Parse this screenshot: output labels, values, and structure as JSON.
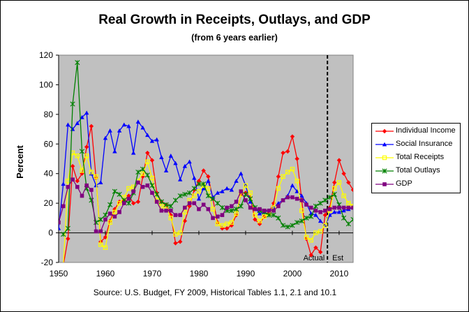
{
  "chart_data": {
    "type": "line",
    "title": "Real Growth in Receipts, Outlays, and GDP",
    "subtitle": "(from 6 years earlier)",
    "xlabel": "",
    "ylabel": "Percent",
    "source": "Source: U.S. Budget, FY 2009, Historical Tables 1.1, 2.1 and 10.1",
    "xlim": [
      1950,
      2013
    ],
    "ylim": [
      -20,
      120
    ],
    "xticks": [
      1950,
      1960,
      1970,
      1980,
      1990,
      2000,
      2010
    ],
    "yticks": [
      -20,
      0,
      20,
      40,
      60,
      80,
      100,
      120
    ],
    "plot_background": "#c0c0c0",
    "gridlines": "none",
    "legend_position": "right",
    "divider": {
      "x": 2007.5,
      "left_label": "Actual",
      "right_label": "Est"
    },
    "series": [
      {
        "name": "Individual Income",
        "color": "#ff0000",
        "marker": "diamond",
        "x": [
          1951,
          1952,
          1953,
          1954,
          1955,
          1956,
          1957,
          1958,
          1959,
          1960,
          1961,
          1962,
          1963,
          1964,
          1965,
          1966,
          1967,
          1968,
          1969,
          1970,
          1971,
          1972,
          1973,
          1974,
          1975,
          1976,
          1977,
          1978,
          1979,
          1980,
          1981,
          1982,
          1983,
          1984,
          1985,
          1986,
          1987,
          1988,
          1989,
          1990,
          1991,
          1992,
          1993,
          1994,
          1995,
          1996,
          1997,
          1998,
          1999,
          2000,
          2001,
          2002,
          2003,
          2004,
          2005,
          2006,
          2007,
          2008,
          2009,
          2010,
          2011,
          2012,
          2013
        ],
        "values": [
          -22,
          -4,
          45,
          35,
          40,
          58,
          72,
          37,
          -6,
          -3,
          8,
          16,
          21,
          22,
          25,
          20,
          21,
          38,
          54,
          49,
          27,
          21,
          19,
          12,
          -7,
          -6,
          8,
          18,
          29,
          35,
          42,
          38,
          23,
          7,
          3,
          3,
          5,
          12,
          26,
          27,
          24,
          9,
          6,
          11,
          14,
          20,
          38,
          54,
          55,
          65,
          50,
          22,
          -4,
          -15,
          -10,
          -13,
          12,
          17,
          34,
          49,
          40,
          34,
          29
        ]
      },
      {
        "name": "Social Insurance",
        "color": "#0000ff",
        "marker": "triangle",
        "x": [
          1950,
          1951,
          1952,
          1953,
          1954,
          1955,
          1956,
          1957,
          1958,
          1959,
          1960,
          1961,
          1962,
          1963,
          1964,
          1965,
          1966,
          1967,
          1968,
          1969,
          1970,
          1971,
          1972,
          1973,
          1974,
          1975,
          1976,
          1977,
          1978,
          1979,
          1980,
          1981,
          1982,
          1983,
          1984,
          1985,
          1986,
          1987,
          1988,
          1989,
          1990,
          1991,
          1992,
          1993,
          1994,
          1995,
          1996,
          1997,
          1998,
          1999,
          2000,
          2001,
          2002,
          2003,
          2004,
          2005,
          2006,
          2007,
          2008,
          2009,
          2010,
          2011,
          2012,
          2013
        ],
        "values": [
          3,
          33,
          73,
          70,
          74,
          78,
          81,
          40,
          32,
          34,
          64,
          69,
          55,
          69,
          73,
          72,
          54,
          75,
          71,
          66,
          62,
          63,
          51,
          42,
          52,
          47,
          36,
          45,
          48,
          37,
          23,
          30,
          35,
          24,
          27,
          28,
          30,
          29,
          35,
          40,
          32,
          21,
          17,
          13,
          14,
          15,
          17,
          20,
          22,
          25,
          32,
          28,
          25,
          20,
          13,
          12,
          8,
          5,
          12,
          14,
          14,
          15,
          16,
          17
        ]
      },
      {
        "name": "Total Receipts",
        "color": "#ffff00",
        "marker": "square-open",
        "x": [
          1951,
          1952,
          1953,
          1954,
          1955,
          1956,
          1957,
          1958,
          1959,
          1960,
          1961,
          1962,
          1963,
          1964,
          1965,
          1966,
          1967,
          1968,
          1969,
          1970,
          1971,
          1972,
          1973,
          1974,
          1975,
          1976,
          1977,
          1978,
          1979,
          1980,
          1981,
          1982,
          1983,
          1984,
          1985,
          1986,
          1987,
          1988,
          1989,
          1990,
          1991,
          1992,
          1993,
          1994,
          1995,
          1996,
          1997,
          1998,
          1999,
          2000,
          2001,
          2002,
          2003,
          2004,
          2005,
          2006,
          2007,
          2008,
          2009,
          2010,
          2011,
          2012,
          2013
        ],
        "values": [
          -22,
          35,
          54,
          52,
          42,
          52,
          41,
          38,
          -8,
          -10,
          7,
          14,
          20,
          24,
          30,
          31,
          35,
          40,
          48,
          37,
          22,
          18,
          17,
          10,
          -1,
          0,
          14,
          22,
          25,
          28,
          32,
          30,
          16,
          6,
          5,
          6,
          7,
          13,
          26,
          32,
          27,
          12,
          8,
          11,
          13,
          17,
          30,
          38,
          41,
          43,
          35,
          15,
          -3,
          -5,
          0,
          1,
          5,
          15,
          30,
          34,
          25,
          20,
          18
        ]
      },
      {
        "name": "Total Outlays",
        "color": "#008000",
        "marker": "star",
        "x": [
          1951,
          1952,
          1953,
          1954,
          1955,
          1956,
          1957,
          1958,
          1959,
          1960,
          1961,
          1962,
          1963,
          1964,
          1965,
          1966,
          1967,
          1968,
          1969,
          1970,
          1971,
          1972,
          1973,
          1974,
          1975,
          1976,
          1977,
          1978,
          1979,
          1980,
          1981,
          1982,
          1983,
          1984,
          1985,
          1986,
          1987,
          1988,
          1989,
          1990,
          1991,
          1992,
          1993,
          1994,
          1995,
          1996,
          1997,
          1998,
          1999,
          2000,
          2001,
          2002,
          2003,
          2004,
          2005,
          2006,
          2007,
          2008,
          2009,
          2010,
          2011,
          2012,
          2013
        ],
        "values": [
          -1,
          3,
          87,
          115,
          55,
          30,
          22,
          7,
          9,
          12,
          19,
          28,
          26,
          22,
          20,
          27,
          41,
          43,
          39,
          32,
          26,
          21,
          19,
          18,
          22,
          25,
          26,
          27,
          30,
          33,
          33,
          25,
          23,
          20,
          17,
          15,
          15,
          16,
          18,
          26,
          23,
          17,
          15,
          14,
          12,
          12,
          10,
          5,
          4,
          5,
          7,
          8,
          10,
          11,
          18,
          20,
          22,
          24,
          26,
          19,
          10,
          6,
          9
        ]
      },
      {
        "name": "GDP",
        "color": "#800080",
        "marker": "square",
        "x": [
          1950,
          1951,
          1952,
          1953,
          1954,
          1955,
          1956,
          1957,
          1958,
          1959,
          1960,
          1961,
          1962,
          1963,
          1964,
          1965,
          1966,
          1967,
          1968,
          1969,
          1970,
          1971,
          1972,
          1973,
          1974,
          1975,
          1976,
          1977,
          1978,
          1979,
          1980,
          1981,
          1982,
          1983,
          1984,
          1985,
          1986,
          1987,
          1988,
          1989,
          1990,
          1991,
          1992,
          1993,
          1994,
          1995,
          1996,
          1997,
          1998,
          1999,
          2000,
          2001,
          2002,
          2003,
          2004,
          2005,
          2006,
          2007,
          2008,
          2009,
          2010,
          2011,
          2012,
          2013
        ],
        "values": [
          7,
          18,
          31,
          36,
          31,
          25,
          32,
          29,
          1,
          1,
          9,
          13,
          11,
          14,
          20,
          23,
          28,
          34,
          31,
          32,
          27,
          21,
          15,
          15,
          15,
          12,
          12,
          17,
          20,
          20,
          16,
          19,
          16,
          10,
          11,
          12,
          17,
          18,
          21,
          28,
          22,
          17,
          16,
          16,
          15,
          15,
          15,
          18,
          22,
          24,
          24,
          23,
          22,
          19,
          17,
          15,
          14,
          15,
          16,
          17,
          17,
          17,
          17,
          17
        ]
      }
    ]
  }
}
